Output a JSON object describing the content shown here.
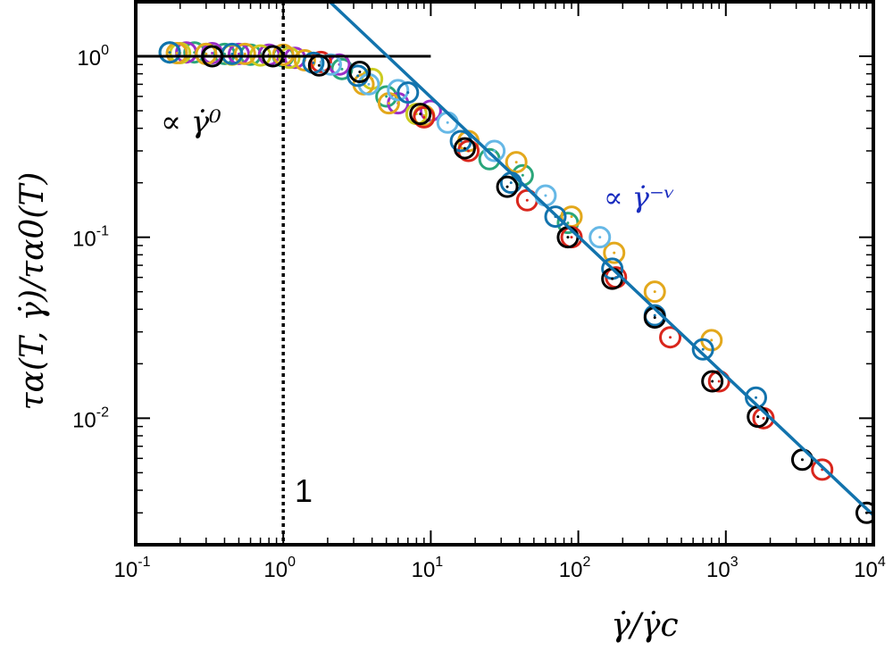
{
  "chart_data": {
    "type": "scatter",
    "title": "",
    "xlabel": "γ̇/γ̇c",
    "ylabel": "τα(T, γ̇)/τα0(T)",
    "xscale": "log",
    "yscale": "log",
    "xlim": [
      0.1,
      10000
    ],
    "ylim": [
      0.002,
      2.0
    ],
    "x_ticks": [
      {
        "value": 0.1,
        "base": "10",
        "exp": "-1"
      },
      {
        "value": 1,
        "base": "10",
        "exp": "0"
      },
      {
        "value": 10,
        "base": "10",
        "exp": "1"
      },
      {
        "value": 100,
        "base": "10",
        "exp": "2"
      },
      {
        "value": 1000,
        "base": "10",
        "exp": "3"
      },
      {
        "value": 10000,
        "base": "10",
        "exp": "4"
      }
    ],
    "y_ticks": [
      {
        "value": 1,
        "base": "10",
        "exp": "0"
      },
      {
        "value": 0.1,
        "base": "10",
        "exp": "-1"
      },
      {
        "value": 0.01,
        "base": "10",
        "exp": "-2"
      }
    ],
    "grid": false,
    "legend": "none",
    "annotations": [
      {
        "text": "∝ γ̇⁰",
        "color": "#000000"
      },
      {
        "text": "∝ γ̇⁻ᵛ",
        "color": "#1a2dbf"
      },
      {
        "text": "1",
        "color": "#000000"
      }
    ],
    "reference_lines": [
      {
        "kind": "horizontal",
        "y": 1.0,
        "x_range": [
          0.1,
          10
        ],
        "color": "#000000"
      },
      {
        "kind": "vertical",
        "x": 1.0,
        "style": "dotted",
        "color": "#000000"
      },
      {
        "kind": "power_law",
        "prefactor": 3.5,
        "exponent": -0.77,
        "x_range": [
          0.1,
          10000
        ],
        "color": "#1273ad"
      }
    ],
    "series": [
      {
        "color": "#2aa67a",
        "points": [
          [
            0.17,
            1.05
          ],
          [
            0.25,
            1.05
          ],
          [
            0.4,
            1.03
          ],
          [
            0.6,
            1.02
          ],
          [
            1.0,
            1.0
          ],
          [
            2.5,
            0.85
          ],
          [
            5.0,
            0.6
          ],
          [
            25,
            0.27
          ],
          [
            42,
            0.22
          ],
          [
            85,
            0.12
          ]
        ]
      },
      {
        "color": "#9b2fc7",
        "points": [
          [
            0.22,
            1.05
          ],
          [
            0.33,
            1.04
          ],
          [
            0.5,
            1.03
          ],
          [
            0.8,
            1.02
          ],
          [
            1.2,
            0.98
          ],
          [
            2.4,
            0.9
          ],
          [
            6.0,
            0.55
          ],
          [
            10,
            0.5
          ]
        ]
      },
      {
        "color": "#cccc22",
        "points": [
          [
            0.2,
            1.04
          ],
          [
            0.3,
            1.03
          ],
          [
            0.45,
            1.02
          ],
          [
            0.7,
            1.01
          ],
          [
            1.1,
            0.98
          ],
          [
            4.0,
            0.75
          ],
          [
            8.0,
            0.48
          ]
        ]
      },
      {
        "color": "#e3a81c",
        "points": [
          [
            0.19,
            1.04
          ],
          [
            0.3,
            1.03
          ],
          [
            0.55,
            1.03
          ],
          [
            1.0,
            1.02
          ],
          [
            1.4,
            0.95
          ],
          [
            3.5,
            0.7
          ],
          [
            5.2,
            0.55
          ],
          [
            9.0,
            0.47
          ],
          [
            18,
            0.34
          ],
          [
            38,
            0.26
          ],
          [
            90,
            0.13
          ],
          [
            175,
            0.082
          ],
          [
            330,
            0.05
          ],
          [
            800,
            0.027
          ]
        ]
      },
      {
        "color": "#d9261c",
        "points": [
          [
            1.8,
            0.93
          ],
          [
            9.0,
            0.46
          ],
          [
            18,
            0.3
          ],
          [
            45,
            0.16
          ],
          [
            90,
            0.1
          ],
          [
            180,
            0.06
          ],
          [
            420,
            0.028
          ],
          [
            900,
            0.016
          ],
          [
            1800,
            0.01
          ],
          [
            4500,
            0.0052
          ]
        ]
      },
      {
        "color": "#66b8e6",
        "points": [
          [
            2.1,
            0.9
          ],
          [
            3.8,
            0.7
          ],
          [
            6.0,
            0.65
          ],
          [
            13,
            0.43
          ],
          [
            27,
            0.3
          ],
          [
            60,
            0.17
          ],
          [
            140,
            0.1
          ]
        ]
      },
      {
        "color": "#1273ad",
        "points": [
          [
            0.17,
            1.05
          ],
          [
            0.45,
            1.03
          ],
          [
            1.6,
            0.92
          ],
          [
            3.2,
            0.78
          ],
          [
            7.0,
            0.63
          ],
          [
            16,
            0.34
          ],
          [
            35,
            0.2
          ],
          [
            70,
            0.13
          ],
          [
            170,
            0.067
          ],
          [
            330,
            0.037
          ],
          [
            700,
            0.024
          ],
          [
            1600,
            0.013
          ]
        ]
      },
      {
        "color": "#000000",
        "points": [
          [
            0.33,
            1.0
          ],
          [
            0.85,
            1.0
          ],
          [
            1.75,
            0.89
          ],
          [
            3.3,
            0.82
          ],
          [
            8.5,
            0.48
          ],
          [
            17,
            0.31
          ],
          [
            33,
            0.19
          ],
          [
            85,
            0.1
          ],
          [
            170,
            0.059
          ],
          [
            330,
            0.036
          ],
          [
            810,
            0.016
          ],
          [
            1650,
            0.0102
          ],
          [
            3300,
            0.0059
          ],
          [
            9000,
            0.003
          ]
        ]
      }
    ]
  }
}
